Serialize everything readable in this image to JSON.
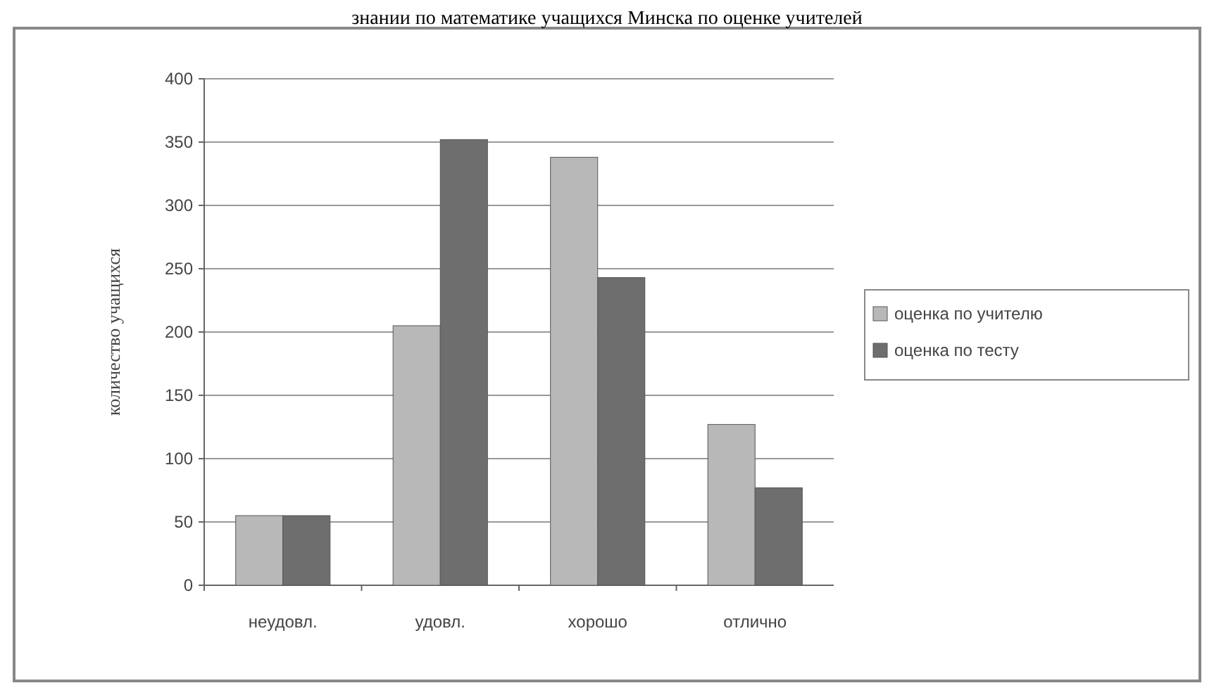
{
  "chart_data": {
    "type": "bar",
    "title": "знании по математике учащихся Минска по оценке учителей",
    "ylabel": "количество учащихся",
    "categories": [
      "неудовл.",
      "удовл.",
      "хорошо",
      "отлично"
    ],
    "series": [
      {
        "name": "оценка по учителю",
        "color": "#b8b8b8",
        "values": [
          55,
          205,
          338,
          127
        ]
      },
      {
        "name": "оценка по тесту",
        "color": "#6e6e6e",
        "values": [
          55,
          352,
          243,
          77
        ]
      }
    ],
    "ylim": [
      0,
      400
    ],
    "yticks": [
      0,
      50,
      100,
      150,
      200,
      250,
      300,
      350,
      400
    ],
    "grid": "y",
    "legend": "right"
  }
}
